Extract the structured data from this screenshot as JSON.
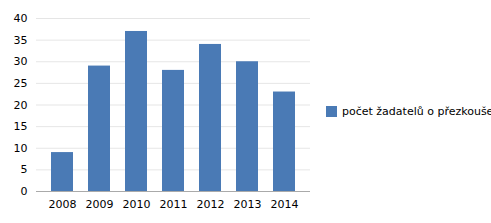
{
  "chart_data": {
    "type": "bar",
    "categories": [
      "2008",
      "2009",
      "2010",
      "2011",
      "2012",
      "2013",
      "2014"
    ],
    "series": [
      {
        "name": "počet žadatelů o přezkoušení",
        "color": "#4a7ab5",
        "values": [
          9,
          29,
          37,
          28,
          34,
          30,
          23
        ]
      }
    ],
    "ylim": [
      0,
      40
    ],
    "yticks": [
      0,
      5,
      10,
      15,
      20,
      25,
      30,
      35,
      40
    ],
    "grid": true,
    "legend": "right"
  }
}
